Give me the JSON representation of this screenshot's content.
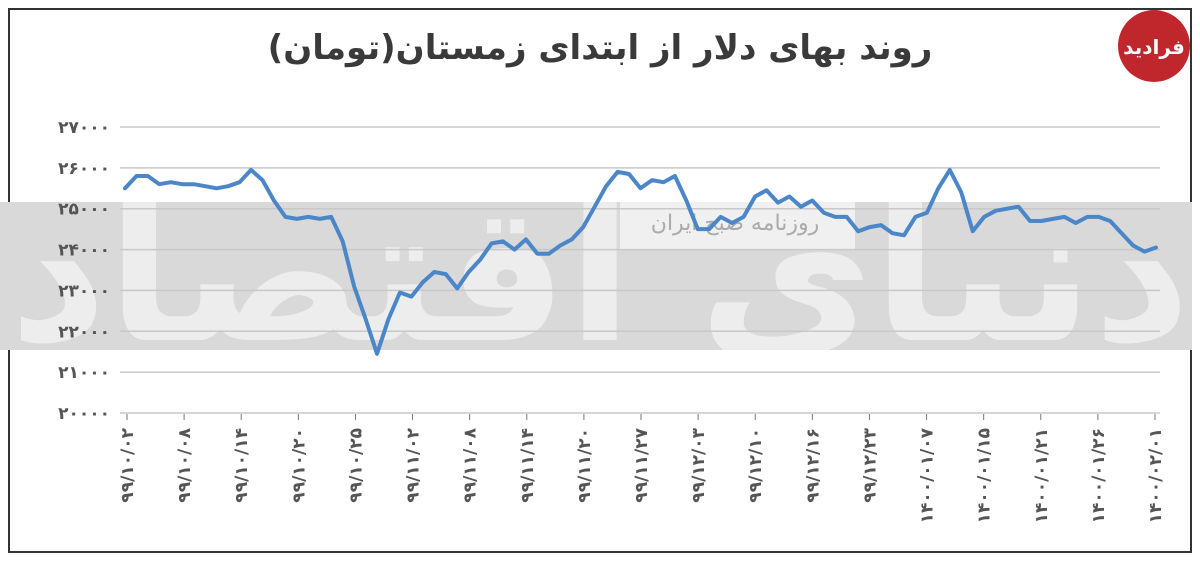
{
  "chart_data": {
    "type": "line",
    "title": "روند بهای دلار از ابتدای زمستان(تومان)",
    "xlabel": "",
    "ylabel": "",
    "ylim": [
      20000,
      27000
    ],
    "yticks": [
      20000,
      21000,
      22000,
      23000,
      24000,
      25000,
      26000,
      27000
    ],
    "ytick_labels": [
      "۲۰۰۰۰",
      "۲۱۰۰۰",
      "۲۲۰۰۰",
      "۲۳۰۰۰",
      "۲۴۰۰۰",
      "۲۵۰۰۰",
      "۲۶۰۰۰",
      "۲۷۰۰۰"
    ],
    "xtick_labels": [
      "۹۹/۱۰/۰۲",
      "۹۹/۱۰/۰۸",
      "۹۹/۱۰/۱۴",
      "۹۹/۱۰/۲۰",
      "۹۹/۱۰/۲۵",
      "۹۹/۱۱/۰۲",
      "۹۹/۱۱/۰۸",
      "۹۹/۱۱/۱۴",
      "۹۹/۱۱/۲۰",
      "۹۹/۱۱/۲۷",
      "۹۹/۱۲/۰۳",
      "۹۹/۱۲/۱۰",
      "۹۹/۱۲/۱۶",
      "۹۹/۱۲/۲۳",
      "۱۴۰۰/۰۱/۰۷",
      "۱۴۰۰/۰۱/۱۵",
      "۱۴۰۰/۰۱/۲۱",
      "۱۴۰۰/۰۱/۲۶",
      "۱۴۰۰/۰۲/۰۱"
    ],
    "grid": true,
    "line_color": "#4a86c8",
    "series": [
      {
        "values": [
          25500,
          25800,
          25800,
          25600,
          25650,
          25600,
          25600,
          25550,
          25500,
          25550,
          25650,
          25950,
          25700,
          25200,
          24800,
          24750,
          24800,
          24750,
          24800,
          24200,
          23100,
          22300,
          21450,
          22300,
          22950,
          22850,
          23200,
          23450,
          23400,
          23050,
          23450,
          23750,
          24150,
          24200,
          24000,
          24250,
          23900,
          23900,
          24100,
          24250,
          24550,
          25050,
          25550,
          25900,
          25850,
          25500,
          25700,
          25650,
          25800,
          25200,
          24500,
          24500,
          24800,
          24650,
          24800,
          25300,
          25450,
          25150,
          25300,
          25050,
          25200,
          24900,
          24800,
          24800,
          24450,
          24550,
          24600,
          24400,
          24350,
          24800,
          24900,
          25500,
          25950,
          25400,
          24450,
          24800,
          24950,
          25000,
          25050,
          24700,
          24700,
          24750,
          24800,
          24650,
          24800,
          24800,
          24700,
          24400,
          24100,
          23950,
          24050
        ]
      }
    ]
  },
  "watermark": {
    "banner": "روزنامه صبح ایران",
    "large_text": "دنیای اقتصاد"
  },
  "logo": {
    "text": "فرادید",
    "color": "#c0272d"
  }
}
